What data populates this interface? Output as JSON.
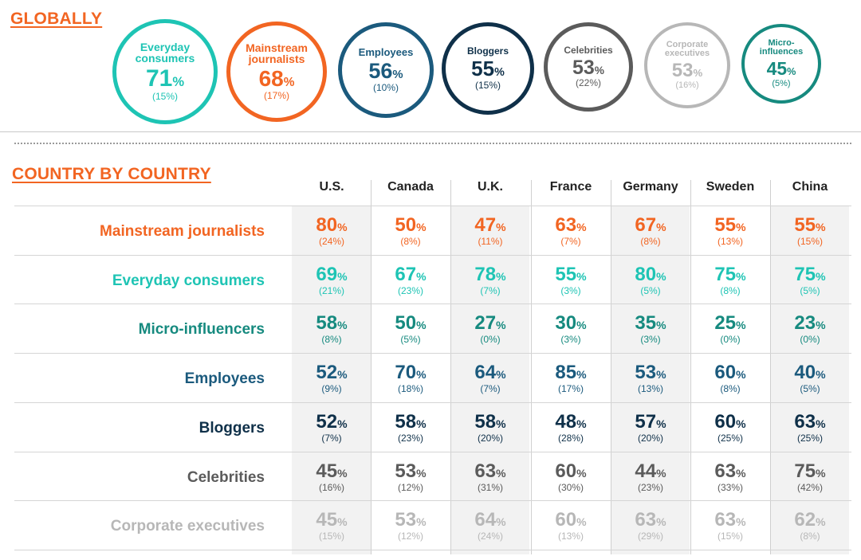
{
  "chart_data": [
    {
      "type": "table",
      "title": "GLOBALLY",
      "categories": [
        "Everyday consumers",
        "Mainstream journalists",
        "Employees",
        "Bloggers",
        "Celebrities",
        "Corporate executives",
        "Micro-influences"
      ],
      "items": [
        {
          "label": "Everyday consumers",
          "value": "71",
          "sub": "(15%)",
          "color": "#1ec4b4"
        },
        {
          "label": "Mainstream journalists",
          "value": "68",
          "sub": "(17%)",
          "color": "#f26522"
        },
        {
          "label": "Employees",
          "value": "56",
          "sub": "(10%)",
          "color": "#1b5a7d"
        },
        {
          "label": "Bloggers",
          "value": "55",
          "sub": "(15%)",
          "color": "#0f3049"
        },
        {
          "label": "Celebrities",
          "value": "53",
          "sub": "(22%)",
          "color": "#5b5b5b"
        },
        {
          "label": "Corporate executives",
          "value": "53",
          "sub": "(16%)",
          "color": "#b7b7b7"
        },
        {
          "label": "Micro-influences",
          "value": "45",
          "sub": "(5%)",
          "color": "#168a7f"
        }
      ]
    },
    {
      "type": "table",
      "title": "COUNTRY BY COUNTRY",
      "columns": [
        "U.S.",
        "Canada",
        "U.K.",
        "France",
        "Germany",
        "Sweden",
        "China"
      ],
      "rows": [
        {
          "label": "Mainstream journalists",
          "color": "#f26522",
          "values": [
            "80",
            "50",
            "47",
            "63",
            "67",
            "55",
            "55"
          ],
          "subs": [
            "(24%)",
            "(8%)",
            "(11%)",
            "(7%)",
            "(8%)",
            "(13%)",
            "(15%)"
          ]
        },
        {
          "label": "Everyday consumers",
          "color": "#1ec4b4",
          "values": [
            "69",
            "67",
            "78",
            "55",
            "80",
            "75",
            "75"
          ],
          "subs": [
            "(21%)",
            "(23%)",
            "(7%)",
            "(3%)",
            "(5%)",
            "(8%)",
            "(5%)"
          ]
        },
        {
          "label": "Micro-influencers",
          "color": "#168a7f",
          "values": [
            "58",
            "50",
            "27",
            "30",
            "35",
            "25",
            "23"
          ],
          "subs": [
            "(8%)",
            "(5%)",
            "(0%)",
            "(3%)",
            "(3%)",
            "(0%)",
            "(0%)"
          ]
        },
        {
          "label": "Employees",
          "color": "#1b5a7d",
          "values": [
            "52",
            "70",
            "64",
            "85",
            "53",
            "60",
            "40"
          ],
          "subs": [
            "(9%)",
            "(18%)",
            "(7%)",
            "(17%)",
            "(13%)",
            "(8%)",
            "(5%)"
          ]
        },
        {
          "label": "Bloggers",
          "color": "#0f3049",
          "values": [
            "52",
            "58",
            "58",
            "48",
            "57",
            "60",
            "63"
          ],
          "subs": [
            "(7%)",
            "(23%)",
            "(20%)",
            "(28%)",
            "(20%)",
            "(25%)",
            "(25%)"
          ]
        },
        {
          "label": "Celebrities",
          "color": "#5b5b5b",
          "values": [
            "45",
            "53",
            "63",
            "60",
            "44",
            "63",
            "75"
          ],
          "subs": [
            "(16%)",
            "(12%)",
            "(31%)",
            "(30%)",
            "(23%)",
            "(33%)",
            "(42%)"
          ]
        },
        {
          "label": "Corporate executives",
          "color": "#b7b7b7",
          "values": [
            "45",
            "53",
            "64",
            "60",
            "63",
            "63",
            "62"
          ],
          "subs": [
            "(15%)",
            "(12%)",
            "(24%)",
            "(13%)",
            "(29%)",
            "(15%)",
            "(8%)"
          ]
        }
      ],
      "unit": "%"
    }
  ]
}
